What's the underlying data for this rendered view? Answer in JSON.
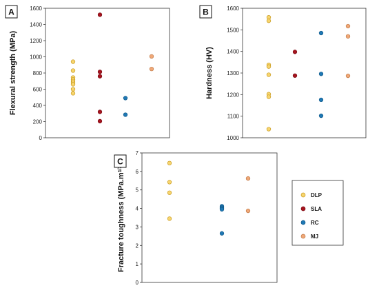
{
  "colors": {
    "DLP": "#F7D56F",
    "SLA": "#A6141F",
    "RC": "#1F78B4",
    "MJ": "#F0A878",
    "DLP_edge": "#C89A1E",
    "SLA_edge": "#7A0A12",
    "RC_edge": "#125A8A",
    "MJ_edge": "#C07A48"
  },
  "legend": {
    "items": [
      "DLP",
      "SLA",
      "RC",
      "MJ"
    ]
  },
  "chart_data": [
    {
      "type": "scatter",
      "panel_label": "A",
      "ylabel": "Flexural strength (MPa)",
      "ylim": [
        0,
        1600
      ],
      "yticks": [
        "0",
        "200",
        "400",
        "600",
        "800",
        "1000",
        "1200",
        "1400",
        "1600"
      ],
      "series": [
        {
          "name": "DLP",
          "x": 1,
          "values": [
            940,
            830,
            745,
            720,
            700,
            680,
            660,
            600,
            550
          ]
        },
        {
          "name": "SLA",
          "x": 2,
          "values": [
            1520,
            815,
            760,
            320,
            205
          ]
        },
        {
          "name": "RC",
          "x": 3,
          "values": [
            490,
            285
          ]
        },
        {
          "name": "MJ",
          "x": 4,
          "values": [
            1005,
            850
          ]
        }
      ]
    },
    {
      "type": "scatter",
      "panel_label": "B",
      "ylabel": "Hardness (HV)",
      "ylim": [
        1000,
        1600
      ],
      "yticks": [
        "1000",
        "1100",
        "1200",
        "1300",
        "1400",
        "1500",
        "1600"
      ],
      "series": [
        {
          "name": "DLP",
          "x": 1,
          "values": [
            1558,
            1542,
            1338,
            1330,
            1292,
            1202,
            1190,
            1040
          ]
        },
        {
          "name": "SLA",
          "x": 2,
          "values": [
            1398,
            1288
          ]
        },
        {
          "name": "RC",
          "x": 3,
          "values": [
            1485,
            1296,
            1176,
            1102
          ]
        },
        {
          "name": "MJ",
          "x": 4,
          "values": [
            1517,
            1470,
            1287
          ]
        }
      ]
    },
    {
      "type": "scatter",
      "panel_label": "C",
      "ylabel": "Fracture toughness (MPa.m",
      "ylabel_sup": "1/2",
      "ylabel_end": ")",
      "ylim": [
        0,
        7
      ],
      "yticks": [
        "0",
        "1",
        "2",
        "3",
        "4",
        "5",
        "6",
        "7"
      ],
      "series": [
        {
          "name": "DLP",
          "x": 1,
          "values": [
            6.45,
            5.42,
            4.85,
            3.45
          ]
        },
        {
          "name": "RC",
          "x": 3,
          "values": [
            4.12,
            4.05,
            4.0,
            3.95,
            2.65
          ]
        },
        {
          "name": "MJ",
          "x": 4,
          "values": [
            5.62,
            3.87
          ]
        }
      ]
    }
  ]
}
